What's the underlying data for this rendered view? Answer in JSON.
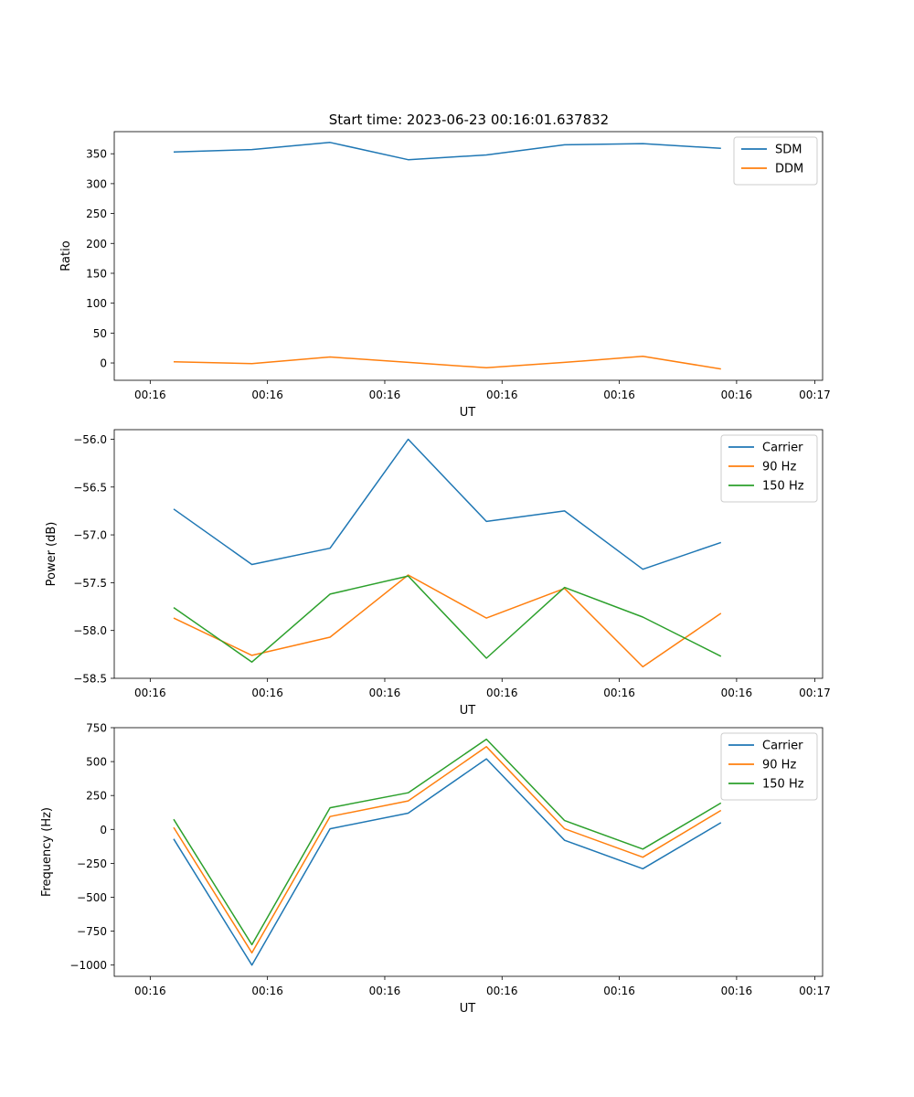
{
  "figure": {
    "title": "Start time: 2023-06-23 00:16:01.637832"
  },
  "colors": {
    "blue": "#1f77b4",
    "orange": "#ff7f0e",
    "green": "#2ca02c"
  },
  "chart_data": [
    {
      "type": "line",
      "xlabel": "UT",
      "ylabel": "Ratio",
      "x": [
        1,
        2,
        3,
        4,
        5,
        6,
        7,
        8
      ],
      "xlim": [
        0.24,
        9.3
      ],
      "xticks": [
        0.7,
        2.2,
        3.7,
        5.2,
        6.7,
        8.2,
        9.2
      ],
      "xticklabels": [
        "00:16",
        "00:16",
        "00:16",
        "00:16",
        "00:16",
        "00:16",
        "00:17"
      ],
      "ylim": [
        -29,
        387
      ],
      "yticks": [
        0,
        50,
        100,
        150,
        200,
        250,
        300,
        350
      ],
      "legend": "top-right",
      "series": [
        {
          "name": "SDM",
          "color": "#1f77b4",
          "values": [
            353,
            357,
            369,
            340,
            348,
            365,
            367,
            359
          ]
        },
        {
          "name": "DDM",
          "color": "#ff7f0e",
          "values": [
            2,
            -1,
            10,
            1,
            -8,
            1,
            11,
            -10
          ]
        }
      ]
    },
    {
      "type": "line",
      "xlabel": "UT",
      "ylabel": "Power (dB)",
      "x": [
        1,
        2,
        3,
        4,
        5,
        6,
        7,
        8
      ],
      "xlim": [
        0.24,
        9.3
      ],
      "xticks": [
        0.7,
        2.2,
        3.7,
        5.2,
        6.7,
        8.2,
        9.2
      ],
      "xticklabels": [
        "00:16",
        "00:16",
        "00:16",
        "00:16",
        "00:16",
        "00:16",
        "00:17"
      ],
      "ylim": [
        -58.5,
        -55.9
      ],
      "yticks": [
        -58.5,
        -58.0,
        -57.5,
        -57.0,
        -56.5,
        -56.0
      ],
      "legend": "top-right",
      "series": [
        {
          "name": "Carrier",
          "color": "#1f77b4",
          "values": [
            -56.73,
            -57.31,
            -57.14,
            -56.0,
            -56.86,
            -56.75,
            -57.36,
            -57.08
          ]
        },
        {
          "name": "90 Hz",
          "color": "#ff7f0e",
          "values": [
            -57.87,
            -58.26,
            -58.07,
            -57.42,
            -57.87,
            -57.56,
            -58.38,
            -57.82
          ]
        },
        {
          "name": "150 Hz",
          "color": "#2ca02c",
          "values": [
            -57.76,
            -58.33,
            -57.62,
            -57.43,
            -58.29,
            -57.55,
            -57.86,
            -58.27
          ]
        }
      ]
    },
    {
      "type": "line",
      "xlabel": "UT",
      "ylabel": "Frequency (Hz)",
      "x": [
        1,
        2,
        3,
        4,
        5,
        6,
        7,
        8
      ],
      "xlim": [
        0.24,
        9.3
      ],
      "xticks": [
        0.7,
        2.2,
        3.7,
        5.2,
        6.7,
        8.2,
        9.2
      ],
      "xticklabels": [
        "00:16",
        "00:16",
        "00:16",
        "00:16",
        "00:16",
        "00:16",
        "00:17"
      ],
      "ylim": [
        -1083,
        750
      ],
      "yticks": [
        -1000,
        -750,
        -500,
        -250,
        0,
        250,
        500,
        750
      ],
      "legend": "top-right",
      "series": [
        {
          "name": "Carrier",
          "color": "#1f77b4",
          "values": [
            -70,
            -1000,
            5,
            120,
            520,
            -80,
            -290,
            50
          ]
        },
        {
          "name": "90 Hz",
          "color": "#ff7f0e",
          "values": [
            15,
            -910,
            95,
            210,
            610,
            5,
            -205,
            140
          ]
        },
        {
          "name": "150 Hz",
          "color": "#2ca02c",
          "values": [
            75,
            -850,
            160,
            270,
            665,
            65,
            -145,
            195
          ]
        }
      ]
    }
  ]
}
